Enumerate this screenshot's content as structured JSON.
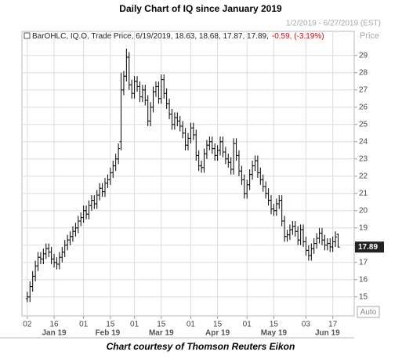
{
  "chart_data": {
    "type": "ohlc",
    "title": "Daily Chart of IQ since January 2019",
    "date_range": "1/2/2019 - 6/27/2019 (EST)",
    "axis_label": "Price",
    "legend": {
      "text": "BarOHLC, IQ.O, Trade Price, 6/19/2019, 18.63, 18.68, 17.87, 17.89,",
      "change": "-0.59, (-3.19%)",
      "change_color": "#e00000"
    },
    "auto_button": "Auto",
    "footer": "Chart courtesy of Thomson Reuters Eikon",
    "color": "#000000",
    "grid": true,
    "xlim": [
      -2,
      122
    ],
    "ylim": [
      13.9,
      30.4
    ],
    "yticks": [
      15,
      16,
      17,
      18,
      19,
      20,
      21,
      22,
      23,
      24,
      25,
      26,
      27,
      28,
      29
    ],
    "xticks": [
      {
        "value": 0,
        "label": "02"
      },
      {
        "value": 10,
        "label": "16"
      },
      {
        "value": 21,
        "label": "01"
      },
      {
        "value": 31,
        "label": "15"
      },
      {
        "value": 40,
        "label": "01"
      },
      {
        "value": 50,
        "label": "15"
      },
      {
        "value": 61,
        "label": "01"
      },
      {
        "value": 71,
        "label": "15"
      },
      {
        "value": 82,
        "label": "01"
      },
      {
        "value": 92,
        "label": "15"
      },
      {
        "value": 104,
        "label": "03"
      },
      {
        "value": 114,
        "label": "17"
      }
    ],
    "months": [
      {
        "value": 10,
        "label": "Jan 19"
      },
      {
        "value": 30,
        "label": "Feb 19"
      },
      {
        "value": 50,
        "label": "Mar 19"
      },
      {
        "value": 71,
        "label": "Apr 19"
      },
      {
        "value": 92,
        "label": "May 19"
      },
      {
        "value": 112,
        "label": "Jun 19"
      }
    ],
    "open": [
      14.9,
      15.0,
      15.6,
      16.2,
      16.8,
      17.3,
      17.2,
      17.5,
      17.8,
      17.6,
      17.2,
      17.0,
      16.9,
      17.3,
      17.6,
      18.0,
      18.3,
      18.5,
      18.8,
      19.0,
      19.4,
      19.6,
      20.0,
      19.8,
      20.3,
      20.6,
      20.4,
      20.9,
      21.3,
      21.1,
      21.6,
      21.8,
      22.2,
      22.6,
      23.0,
      24.0,
      27.0,
      27.8,
      28.9,
      27.3,
      26.8,
      27.5,
      27.2,
      26.6,
      27.0,
      26.4,
      25.2,
      26.0,
      26.9,
      27.2,
      26.5,
      27.6,
      26.8,
      26.2,
      25.6,
      25.0,
      25.4,
      25.2,
      24.9,
      24.5,
      23.8,
      24.2,
      24.8,
      24.4,
      23.2,
      22.6,
      22.5,
      23.3,
      23.8,
      24.0,
      23.6,
      23.2,
      23.5,
      24.0,
      23.4,
      23.0,
      22.8,
      22.4,
      23.9,
      23.2,
      22.3,
      21.8,
      21.0,
      21.5,
      22.1,
      22.6,
      22.9,
      22.2,
      21.8,
      21.4,
      21.0,
      20.6,
      20.1,
      20.0,
      20.4,
      20.6,
      19.4,
      18.5,
      18.6,
      18.9,
      19.1,
      18.8,
      18.3,
      18.9,
      18.2,
      17.7,
      17.4,
      17.8,
      18.1,
      18.4,
      18.7,
      18.3,
      18.0,
      18.1,
      17.9,
      18.2,
      18.63
    ],
    "high": [
      15.3,
      15.9,
      16.5,
      17.1,
      17.6,
      17.6,
      17.8,
      18.1,
      18.1,
      17.9,
      17.5,
      17.3,
      17.6,
      17.9,
      18.3,
      18.6,
      18.8,
      19.1,
      19.3,
      19.7,
      19.9,
      20.3,
      20.3,
      20.6,
      20.9,
      20.9,
      21.2,
      21.6,
      21.6,
      21.9,
      22.1,
      22.5,
      22.9,
      23.3,
      23.9,
      28.0,
      28.1,
      29.4,
      29.2,
      27.6,
      27.8,
      27.8,
      27.5,
      27.3,
      27.3,
      26.7,
      26.3,
      27.2,
      27.5,
      27.5,
      27.9,
      27.9,
      27.1,
      26.5,
      25.9,
      25.7,
      25.7,
      25.5,
      25.2,
      24.8,
      24.5,
      25.1,
      25.1,
      24.7,
      23.5,
      22.9,
      23.6,
      24.1,
      24.3,
      24.3,
      23.9,
      23.8,
      24.3,
      24.3,
      23.7,
      23.3,
      23.1,
      24.2,
      24.2,
      23.5,
      22.6,
      22.1,
      21.8,
      22.4,
      22.9,
      23.2,
      23.2,
      22.5,
      22.1,
      21.7,
      21.3,
      20.9,
      20.4,
      20.7,
      20.9,
      20.9,
      19.7,
      18.9,
      19.2,
      19.4,
      19.4,
      19.1,
      19.2,
      19.2,
      18.5,
      18.0,
      18.1,
      18.4,
      18.7,
      19.0,
      19.0,
      18.6,
      18.4,
      18.4,
      18.5,
      18.8,
      18.68
    ],
    "low": [
      14.7,
      14.7,
      15.3,
      15.9,
      16.5,
      16.9,
      16.9,
      17.2,
      17.3,
      16.9,
      16.7,
      16.6,
      16.6,
      17.0,
      17.3,
      17.7,
      18.0,
      18.2,
      18.5,
      18.7,
      19.1,
      19.3,
      19.5,
      19.5,
      20.0,
      20.1,
      20.1,
      20.6,
      20.8,
      20.8,
      21.3,
      21.5,
      21.9,
      22.3,
      22.7,
      23.5,
      26.7,
      27.5,
      27.0,
      26.5,
      26.5,
      26.9,
      26.3,
      26.3,
      26.1,
      24.9,
      24.9,
      25.7,
      26.6,
      26.2,
      26.2,
      26.5,
      25.9,
      25.3,
      24.7,
      24.7,
      24.9,
      24.6,
      24.2,
      23.5,
      23.5,
      23.9,
      24.1,
      22.9,
      22.3,
      22.2,
      22.2,
      23.0,
      23.5,
      23.3,
      22.9,
      22.9,
      23.2,
      23.1,
      22.7,
      22.5,
      22.1,
      22.1,
      22.9,
      22.0,
      21.5,
      20.7,
      20.7,
      21.2,
      21.8,
      22.3,
      21.9,
      21.5,
      21.1,
      20.7,
      20.3,
      19.8,
      19.7,
      19.7,
      20.1,
      19.1,
      18.2,
      18.2,
      18.3,
      18.6,
      18.5,
      18.0,
      18.0,
      17.9,
      17.4,
      17.1,
      17.1,
      17.5,
      17.8,
      18.1,
      18.0,
      17.7,
      17.7,
      17.6,
      17.6,
      17.9,
      17.87
    ],
    "close": [
      15.0,
      15.6,
      16.2,
      16.8,
      17.3,
      17.2,
      17.5,
      17.8,
      17.6,
      17.2,
      17.0,
      16.9,
      17.3,
      17.6,
      18.0,
      18.3,
      18.5,
      18.8,
      19.0,
      19.4,
      19.6,
      20.0,
      19.8,
      20.3,
      20.6,
      20.4,
      20.9,
      21.3,
      21.1,
      21.6,
      21.8,
      22.2,
      22.6,
      23.0,
      23.6,
      27.0,
      27.8,
      28.9,
      27.3,
      26.8,
      27.5,
      27.2,
      26.6,
      27.0,
      26.4,
      25.2,
      26.0,
      26.9,
      27.2,
      26.5,
      27.6,
      26.8,
      26.2,
      25.6,
      25.0,
      25.4,
      25.2,
      24.9,
      24.5,
      23.8,
      24.2,
      24.8,
      24.4,
      23.2,
      22.6,
      22.5,
      23.3,
      23.8,
      24.0,
      23.6,
      23.2,
      23.5,
      24.0,
      23.4,
      23.0,
      22.8,
      22.4,
      23.9,
      23.2,
      22.3,
      21.8,
      21.0,
      21.5,
      22.1,
      22.6,
      22.9,
      22.2,
      21.8,
      21.4,
      21.0,
      20.6,
      20.1,
      20.0,
      20.4,
      20.6,
      19.4,
      18.5,
      18.6,
      18.9,
      19.1,
      18.8,
      18.3,
      18.9,
      18.2,
      17.7,
      17.4,
      17.8,
      18.1,
      18.4,
      18.7,
      18.3,
      18.0,
      18.1,
      17.9,
      18.2,
      18.48,
      17.89
    ]
  }
}
